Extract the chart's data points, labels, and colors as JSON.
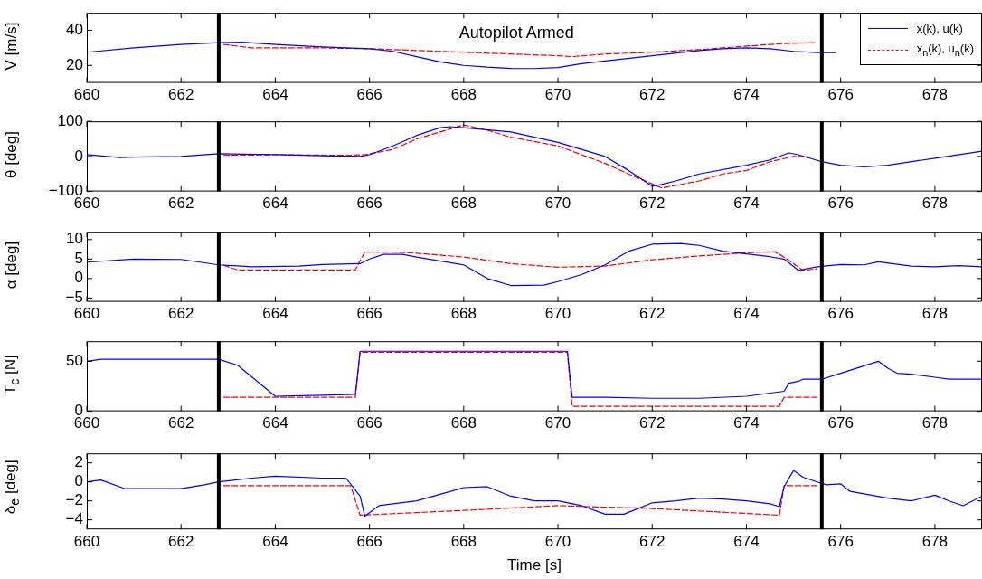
{
  "chart_data": [
    {
      "type": "line",
      "ylabel": "V [m/s]",
      "xlim": [
        660,
        679
      ],
      "xticks": [
        660,
        662,
        664,
        666,
        668,
        670,
        672,
        674,
        676,
        678
      ],
      "ylim": [
        10,
        50
      ],
      "yticks": [
        20,
        40
      ],
      "grid": false,
      "legend": "top right",
      "marker": "none",
      "annotations": [
        "Autopilot Armed"
      ],
      "ref_lines": [
        {
          "axis": "x",
          "value": 662.8,
          "color": "#000000"
        },
        {
          "axis": "x",
          "value": 675.6,
          "color": "#000000"
        }
      ],
      "series": [
        {
          "name": "x(k), u(k)",
          "color": "#0000ff",
          "line_style": "solid",
          "x": [
            660,
            661,
            662,
            662.8,
            663.3,
            664,
            665,
            666,
            666.5,
            667,
            667.5,
            668,
            668.5,
            669,
            669.5,
            670,
            670.5,
            671,
            672,
            673,
            673.5,
            674,
            674.5,
            675,
            675.5,
            675.9
          ],
          "values": [
            27.5,
            30,
            32,
            33,
            33.2,
            32,
            30.5,
            29.5,
            28,
            25,
            22,
            20,
            19,
            18.3,
            18.2,
            18.8,
            21,
            22.5,
            25.5,
            28.5,
            29.5,
            30,
            29.5,
            28,
            27.3,
            27.3
          ]
        },
        {
          "name": "x$_{n}$(k), u$_{n}$(k)",
          "color": "#ff0000",
          "line_style": "dashed",
          "x": [
            662.9,
            663.5,
            665,
            666,
            667,
            668,
            669,
            670,
            670.3,
            671,
            672,
            673,
            674,
            674.8,
            675.5
          ],
          "values": [
            32,
            30,
            30,
            29.5,
            28.5,
            27.5,
            26.5,
            25.5,
            25,
            26.5,
            27.5,
            29,
            31,
            32.5,
            33
          ]
        }
      ]
    },
    {
      "type": "line",
      "ylabel": "θ [deg]",
      "xlim": [
        660,
        679
      ],
      "xticks": [
        660,
        662,
        664,
        666,
        668,
        670,
        672,
        674,
        676,
        678
      ],
      "ylim": [
        -100,
        100
      ],
      "yticks": [
        -100,
        0,
        100
      ],
      "grid": false,
      "marker": "none",
      "ref_lines": [
        {
          "axis": "x",
          "value": 662.8,
          "color": "#000000"
        },
        {
          "axis": "x",
          "value": 675.6,
          "color": "#000000"
        }
      ],
      "series": [
        {
          "color": "#0000ff",
          "line_style": "solid",
          "x": [
            660,
            660.7,
            661,
            662,
            662.8,
            664,
            665,
            665.8,
            666,
            666.5,
            667,
            667.5,
            667.7,
            668,
            669,
            670,
            671,
            671.5,
            672,
            672.2,
            672.5,
            673,
            674,
            674.5,
            674.9,
            675.1,
            675.6,
            676,
            676.5,
            677,
            678,
            679
          ],
          "values": [
            5,
            -3,
            -2,
            0,
            8,
            5,
            2,
            0,
            5,
            30,
            60,
            82,
            85,
            82,
            70,
            40,
            0,
            -40,
            -85,
            -80,
            -70,
            -50,
            -25,
            -10,
            10,
            5,
            -15,
            -25,
            -30,
            -25,
            -5,
            15
          ]
        },
        {
          "color": "#ff0000",
          "line_style": "dashed",
          "x": [
            662.9,
            664,
            665.5,
            665.9,
            666.5,
            667,
            667.5,
            668,
            668.5,
            669,
            670,
            671,
            671.5,
            672.2,
            673,
            673.5,
            674,
            674.5,
            675,
            675.3
          ],
          "values": [
            3,
            5,
            3,
            5,
            20,
            50,
            70,
            90,
            75,
            55,
            30,
            -20,
            -50,
            -90,
            -70,
            -50,
            -40,
            -15,
            0,
            0
          ]
        }
      ]
    },
    {
      "type": "line",
      "ylabel": "α [deg]",
      "xlim": [
        660,
        679
      ],
      "xticks": [
        660,
        662,
        664,
        666,
        668,
        670,
        672,
        674,
        676,
        678
      ],
      "ylim": [
        -6,
        12
      ],
      "yticks": [
        -5,
        0,
        5,
        10
      ],
      "grid": false,
      "marker": "none",
      "ref_lines": [
        {
          "axis": "x",
          "value": 662.8,
          "color": "#000000"
        },
        {
          "axis": "x",
          "value": 675.6,
          "color": "#000000"
        }
      ],
      "series": [
        {
          "color": "#0000ff",
          "line_style": "solid",
          "x": [
            660,
            661,
            662,
            662.8,
            663.5,
            664.5,
            665,
            665.8,
            666,
            666.3,
            666.7,
            667,
            668,
            668.5,
            669,
            669.7,
            670,
            670.5,
            671,
            671.5,
            672,
            672.6,
            673,
            673.5,
            674,
            674.5,
            674.8,
            675.1,
            675.5,
            676,
            676.5,
            676.8,
            677.5,
            678,
            678.5,
            679
          ],
          "values": [
            4.2,
            5,
            4.9,
            3.5,
            3,
            3.2,
            3.6,
            3.8,
            5,
            6.2,
            6.2,
            5.5,
            3.5,
            0,
            -1.8,
            -1.7,
            -0.8,
            1,
            3.5,
            7,
            8.8,
            9,
            8.5,
            7,
            6.3,
            5.6,
            5,
            2.1,
            3,
            3.6,
            3.5,
            4.3,
            3.2,
            3,
            3.3,
            3
          ]
        },
        {
          "color": "#ff0000",
          "line_style": "dashed",
          "x": [
            662.9,
            663.2,
            665.7,
            665.9,
            666.5,
            667,
            668,
            669,
            670,
            671,
            672,
            673,
            674,
            674.6,
            674.8,
            675.2,
            675.5
          ],
          "values": [
            3.4,
            2.2,
            2.2,
            6.8,
            6.8,
            6.5,
            5.5,
            3.8,
            2.9,
            3.2,
            4.8,
            5.8,
            6.6,
            6.9,
            5.5,
            2.1,
            2.5
          ]
        }
      ]
    },
    {
      "type": "line",
      "ylabel": "T$_{c}$ [N]",
      "xlim": [
        660,
        679
      ],
      "xticks": [
        660,
        662,
        664,
        666,
        668,
        670,
        672,
        674,
        676,
        678
      ],
      "ylim": [
        0,
        70
      ],
      "yticks": [
        0,
        50
      ],
      "grid": false,
      "marker": "none",
      "ref_lines": [
        {
          "axis": "x",
          "value": 662.8,
          "color": "#000000"
        },
        {
          "axis": "x",
          "value": 675.6,
          "color": "#000000"
        }
      ],
      "series": [
        {
          "color": "#0000ff",
          "line_style": "solid",
          "x": [
            660,
            660.3,
            662.8,
            663.2,
            664,
            665,
            665.7,
            665.8,
            666,
            670.2,
            670.3,
            671,
            672,
            673,
            674,
            674.8,
            674.9,
            675.1,
            675.2,
            675.6,
            676,
            676.8,
            677,
            677.2,
            677.5,
            678,
            678.3,
            679
          ],
          "values": [
            50,
            52,
            52,
            46,
            15,
            16,
            17,
            60,
            60,
            60,
            14,
            14,
            13,
            13,
            15,
            20,
            28,
            30,
            32,
            32,
            38,
            50,
            43,
            38,
            37,
            34,
            32,
            32
          ]
        },
        {
          "color": "#ff0000",
          "line_style": "dashed",
          "x": [
            662.9,
            665.7,
            665.8,
            670.2,
            670.3,
            674.7,
            674.8,
            675.5
          ],
          "values": [
            14,
            14,
            59,
            59,
            5,
            5,
            14,
            14
          ]
        }
      ]
    },
    {
      "type": "line",
      "ylabel": "δ$_{e}$ [deg]",
      "xlabel": "Time [s]",
      "xlim": [
        660,
        679
      ],
      "xticks": [
        660,
        662,
        664,
        666,
        668,
        670,
        672,
        674,
        676,
        678
      ],
      "ylim": [
        -5,
        3
      ],
      "yticks": [
        -4,
        -2,
        0,
        2
      ],
      "grid": false,
      "marker": "none",
      "ref_lines": [
        {
          "axis": "x",
          "value": 662.8,
          "color": "#000000"
        },
        {
          "axis": "x",
          "value": 675.6,
          "color": "#000000"
        }
      ],
      "series": [
        {
          "color": "#0000ff",
          "line_style": "solid",
          "x": [
            660,
            660.3,
            660.8,
            662,
            662.5,
            662.8,
            663.5,
            664,
            665,
            665.5,
            665.8,
            665.9,
            666.2,
            667,
            667.5,
            668,
            668.5,
            669,
            669.5,
            670,
            670.5,
            671,
            671.4,
            671.7,
            672,
            672.5,
            673,
            673.5,
            674,
            674.5,
            674.7,
            674.8,
            675,
            675.2,
            675.5,
            675.7,
            676,
            676.2,
            677,
            677.5,
            678,
            678.3,
            678.6,
            679
          ],
          "values": [
            0,
            0.2,
            -0.7,
            -0.7,
            -0.3,
            0,
            0.4,
            0.6,
            0.4,
            0.4,
            -1.5,
            -3.6,
            -2.5,
            -2,
            -1.3,
            -0.6,
            -0.5,
            -1.5,
            -2,
            -2,
            -2.5,
            -3.4,
            -3.4,
            -2.8,
            -2.2,
            -2,
            -1.7,
            -1.8,
            -2,
            -2.3,
            -2.6,
            -0.5,
            1.2,
            0.5,
            0,
            -0.3,
            -0.2,
            -1,
            -1.7,
            -2,
            -1.4,
            -2,
            -2.5,
            -1.5
          ]
        },
        {
          "color": "#ff0000",
          "line_style": "dashed",
          "x": [
            662.9,
            665.6,
            665.8,
            668,
            670,
            672,
            674.7,
            674.8,
            675.5
          ],
          "values": [
            -0.4,
            -0.4,
            -3.5,
            -3,
            -2.5,
            -2.8,
            -3.5,
            -0.4,
            -0.4
          ]
        }
      ]
    }
  ]
}
